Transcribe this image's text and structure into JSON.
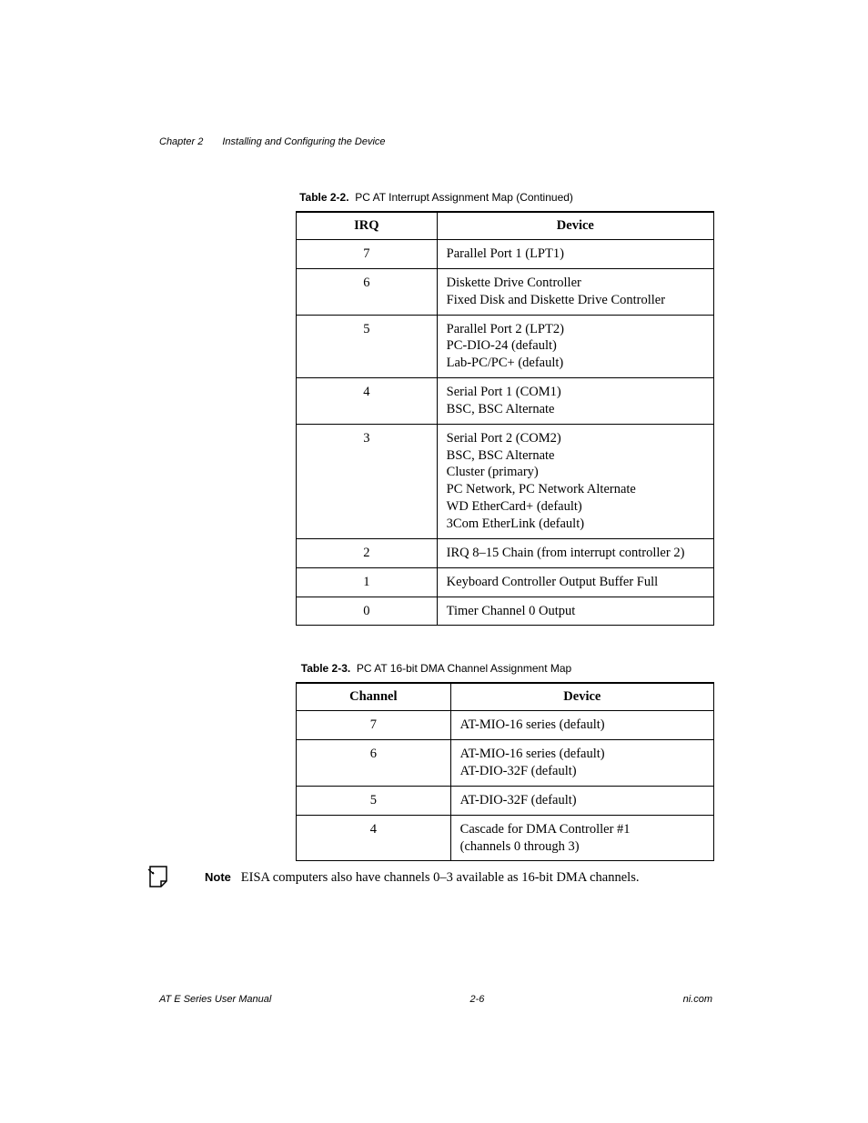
{
  "header": {
    "chapter_label": "Chapter 2",
    "chapter_title": "Installing and Configuring the Device"
  },
  "table1": {
    "caption_prefix": "Table 2-2.",
    "caption_text": "PC AT Interrupt Assignment Map (Continued)",
    "columns": [
      "IRQ",
      "Device"
    ],
    "rows": [
      {
        "c0": "7",
        "c1": "Parallel Port 1 (LPT1)"
      },
      {
        "c0": "6",
        "c1": "Diskette Drive Controller\nFixed Disk and Diskette Drive Controller"
      },
      {
        "c0": "5",
        "c1": "Parallel Port 2 (LPT2)\nPC-DIO-24 (default)\nLab-PC/PC+ (default)"
      },
      {
        "c0": "4",
        "c1": "Serial Port 1 (COM1)\nBSC, BSC Alternate"
      },
      {
        "c0": "3",
        "c1": "Serial Port 2 (COM2)\nBSC, BSC Alternate\nCluster (primary)\nPC Network, PC Network Alternate\nWD EtherCard+ (default)\n3Com EtherLink (default)"
      },
      {
        "c0": "2",
        "c1": "IRQ 8–15 Chain (from interrupt controller 2)"
      },
      {
        "c0": "1",
        "c1": "Keyboard Controller Output Buffer Full"
      },
      {
        "c0": "0",
        "c1": "Timer Channel 0 Output"
      }
    ]
  },
  "table2": {
    "caption_prefix": "Table 2-3.",
    "caption_text": "PC AT 16-bit DMA Channel Assignment Map",
    "columns": [
      "Channel",
      "Device"
    ],
    "rows": [
      {
        "c0": "7",
        "c1": "AT-MIO-16 series (default)"
      },
      {
        "c0": "6",
        "c1": "AT-MIO-16 series (default)\nAT-DIO-32F (default)"
      },
      {
        "c0": "5",
        "c1": "AT-DIO-32F (default)"
      },
      {
        "c0": "4",
        "c1": "Cascade for DMA Controller #1\n(channels 0 through 3)"
      }
    ]
  },
  "note": {
    "label": "Note",
    "text": "EISA computers also have channels 0–3 available as 16-bit DMA channels."
  },
  "footer": {
    "left": "AT E Series User Manual",
    "center": "2-6",
    "right": "ni.com"
  },
  "style": {
    "page_bg": "#ffffff",
    "text_color": "#000000",
    "border_color": "#000000",
    "body_font": "Times New Roman",
    "sans_font": "Arial",
    "body_fontsize": 14.5,
    "caption_fontsize": 12,
    "header_fontsize": 11,
    "footer_fontsize": 11
  }
}
